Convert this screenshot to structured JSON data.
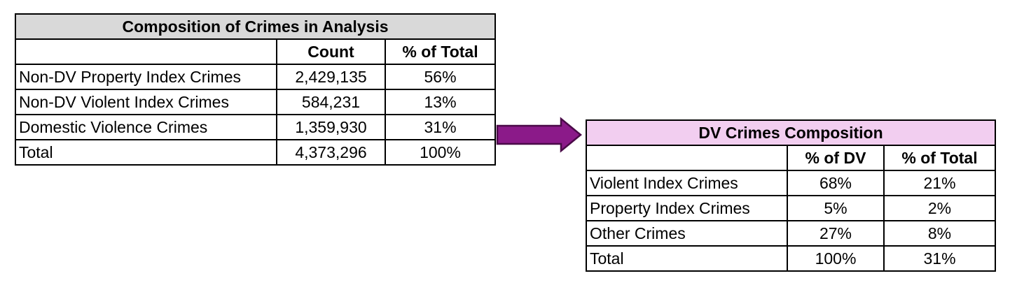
{
  "left_table": {
    "title": "Composition of Crimes in Analysis",
    "headers": [
      "",
      "Count",
      "% of Total"
    ],
    "rows": [
      {
        "label": "Non-DV Property Index Crimes",
        "count": "2,429,135",
        "pct_total": "56%"
      },
      {
        "label": "Non-DV Violent Index Crimes",
        "count": "584,231",
        "pct_total": "13%"
      },
      {
        "label": "Domestic Violence Crimes",
        "count": "1,359,930",
        "pct_total": "31%"
      },
      {
        "label": "Total",
        "count": "4,373,296",
        "pct_total": "100%"
      }
    ]
  },
  "right_table": {
    "title": "DV Crimes Composition",
    "headers": [
      "",
      "% of DV",
      "% of Total"
    ],
    "rows": [
      {
        "label": "Violent Index Crimes",
        "pct_dv": "68%",
        "pct_total": "21%"
      },
      {
        "label": "Property Index Crimes",
        "pct_dv": "5%",
        "pct_total": "2%"
      },
      {
        "label": "Other Crimes",
        "pct_dv": "27%",
        "pct_total": "8%"
      },
      {
        "label": "Total",
        "pct_dv": "100%",
        "pct_total": "31%"
      }
    ]
  },
  "colors": {
    "left_header_fill": "#d9d9d9",
    "right_header_fill": "#f2cef0",
    "arrow_fill": "#8b1a89",
    "arrow_stroke": "#4a0a48",
    "grid": "#000000"
  },
  "icons": {
    "connector": "right-arrow-icon"
  }
}
